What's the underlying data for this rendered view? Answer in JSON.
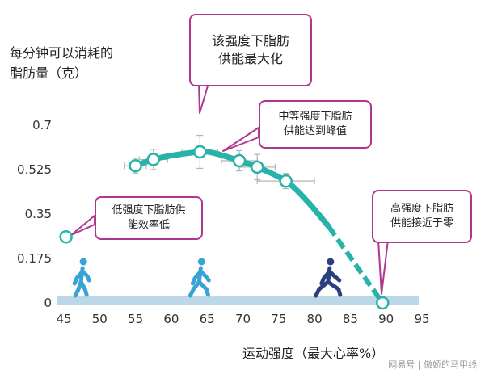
{
  "chart_data": {
    "type": "line",
    "ylabel": [
      "每分钟可以消耗的",
      "脂肪量（克）"
    ],
    "xlabel": "运动强度（最大心率%）",
    "xlim": [
      45,
      95
    ],
    "ylim": [
      0,
      0.7
    ],
    "xticks": [
      "45",
      "50",
      "55",
      "60",
      "65",
      "70",
      "75",
      "80",
      "85",
      "90",
      "95"
    ],
    "yticks": [
      "0",
      "0.175",
      "0.35",
      "0.525",
      "0.7"
    ],
    "points": [
      {
        "x": 45.3,
        "y": 0.26
      },
      {
        "x": 55.0,
        "y": 0.54
      },
      {
        "x": 57.5,
        "y": 0.565
      },
      {
        "x": 64.0,
        "y": 0.595
      },
      {
        "x": 69.5,
        "y": 0.56
      },
      {
        "x": 72.0,
        "y": 0.535
      },
      {
        "x": 76.0,
        "y": 0.48
      },
      {
        "x": 89.5,
        "y": 0.0
      }
    ],
    "curve_solid": [
      [
        55,
        0.54
      ],
      [
        57.5,
        0.565
      ],
      [
        60,
        0.58
      ],
      [
        64,
        0.595
      ],
      [
        66,
        0.59
      ],
      [
        69.5,
        0.56
      ],
      [
        72,
        0.535
      ],
      [
        76,
        0.48
      ],
      [
        79,
        0.4
      ],
      [
        82,
        0.3
      ]
    ],
    "curve_dashed": [
      [
        82,
        0.3
      ],
      [
        85,
        0.18
      ],
      [
        87.5,
        0.08
      ],
      [
        89.5,
        0.0
      ]
    ],
    "error_bars": [
      {
        "x": 55.0,
        "y": 0.54,
        "xerr": 1.5,
        "yerr": 0.03
      },
      {
        "x": 57.5,
        "y": 0.565,
        "xerr": 2.0,
        "yerr": 0.04
      },
      {
        "x": 64.0,
        "y": 0.595,
        "xerr": 2.5,
        "yerr": 0.065
      },
      {
        "x": 69.5,
        "y": 0.56,
        "xerr": 2.5,
        "yerr": 0.04
      },
      {
        "x": 72.0,
        "y": 0.535,
        "xerr": 2.5,
        "yerr": 0.05
      },
      {
        "x": 76.0,
        "y": 0.48,
        "xerr": 4.0,
        "yerr": 0.03
      }
    ],
    "grid": false,
    "colors": {
      "line": "#27b3a9",
      "marker_fill": "#ffffff",
      "callout_border": "#b0378f",
      "ground": "#bcd7e8",
      "runner_light": "#3aa3d6",
      "runner_dark": "#2b3e7e"
    }
  },
  "annotations": {
    "peak": [
      "该强度下脂肪",
      "供能最大化"
    ],
    "moderate": [
      "中等强度下脂肪",
      "供能达到峰值"
    ],
    "low": [
      "低强度下脂肪供",
      "能效率低"
    ],
    "high": [
      "高强度下脂肪",
      "供能接近于零"
    ]
  },
  "figures": [
    {
      "name": "walking-figure-icon",
      "x": 47.5
    },
    {
      "name": "jogging-figure-icon",
      "x": 64.0
    },
    {
      "name": "running-figure-icon",
      "x": 82.0
    }
  ],
  "watermark": "网易号 | 傲娇的马甲线"
}
